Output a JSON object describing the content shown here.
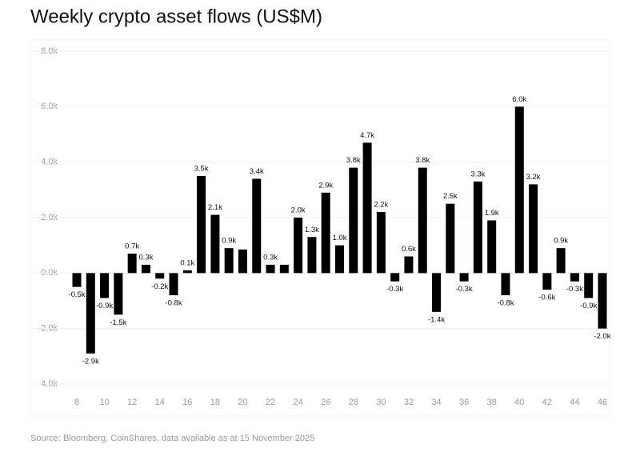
{
  "chart_data": {
    "type": "bar",
    "title": "Weekly crypto asset flows (US$M)",
    "source": "Source: Bloomberg, CoinShares, data available as at 15 November 2025",
    "x": [
      8,
      9,
      10,
      11,
      12,
      13,
      14,
      15,
      16,
      17,
      18,
      19,
      20,
      21,
      22,
      23,
      24,
      25,
      26,
      27,
      28,
      29,
      30,
      31,
      32,
      33,
      34,
      35,
      36,
      37,
      38,
      39,
      40,
      41,
      42,
      43,
      44,
      45,
      46
    ],
    "values": [
      -0.5,
      -2.9,
      -0.9,
      -1.5,
      0.7,
      0.3,
      -0.2,
      -0.8,
      0.1,
      3.5,
      2.1,
      0.9,
      0.85,
      3.4,
      0.3,
      0.3,
      2.0,
      1.3,
      2.9,
      1.0,
      3.8,
      4.7,
      2.2,
      -0.3,
      0.6,
      3.8,
      -1.4,
      2.5,
      -0.3,
      3.3,
      1.9,
      -0.8,
      6.0,
      3.2,
      -0.6,
      0.9,
      -0.3,
      -0.9,
      -2.0
    ],
    "value_labels": [
      "-0.5k",
      "-2.9k",
      "-0.9k",
      "-1.5k",
      "0.7k",
      "0.3k",
      "-0.2k",
      "-0.8k",
      "0.1k",
      "3.5k",
      "2.1k",
      "0.9k",
      null,
      "3.4k",
      "0.3k",
      null,
      "2.0k",
      "1.3k",
      "2.9k",
      "1.0k",
      "3.8k",
      "4.7k",
      "2.2k",
      "-0.3k",
      "0.6k",
      "3.8k",
      "-1.4k",
      "2.5k",
      "-0.3k",
      "3.3k",
      "1.9k",
      "-0.8k",
      "6.0k",
      "3.2k",
      "-0.6k",
      "0.9k",
      "-0.3k",
      "-0.9k",
      "-2.0k"
    ],
    "color": "#000000",
    "xlim": [
      7.4,
      46.6
    ],
    "xticks": [
      8,
      10,
      12,
      14,
      16,
      18,
      20,
      22,
      24,
      26,
      28,
      30,
      32,
      34,
      36,
      38,
      40,
      42,
      44,
      46
    ],
    "ylim": [
      -4,
      8
    ],
    "yticks": [
      {
        "value": -4,
        "label": "-4.0k"
      },
      {
        "value": -2,
        "label": "-2.0k"
      },
      {
        "value": 0,
        "label": "0.0k"
      },
      {
        "value": 2,
        "label": "2.0k"
      },
      {
        "value": 4,
        "label": "4.0k"
      },
      {
        "value": 6,
        "label": "6.0k"
      },
      {
        "value": 8,
        "label": "8.0k"
      }
    ],
    "grid": true
  }
}
